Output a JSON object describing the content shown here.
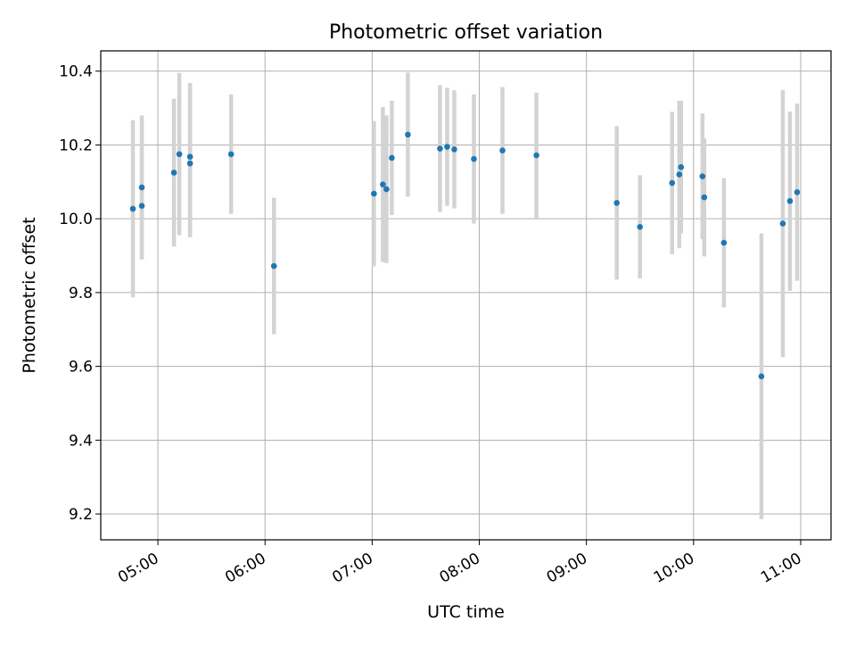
{
  "chart_data": {
    "type": "scatter",
    "title": "Photometric offset variation",
    "xlabel": "UTC time",
    "ylabel": "Photometric offset",
    "x_ticks": [
      "05:00",
      "06:00",
      "07:00",
      "08:00",
      "09:00",
      "10:00",
      "11:00"
    ],
    "y_ticks": [
      "9.2",
      "9.4",
      "9.6",
      "9.8",
      "10.0",
      "10.2",
      "10.4"
    ],
    "xlim": [
      "04:28",
      "11:17"
    ],
    "ylim": [
      9.13,
      10.455
    ],
    "grid": true,
    "colors": {
      "point": "#1f77b4",
      "errorbar": "#d3d3d3",
      "grid": "#b0b0b0"
    },
    "series": [
      {
        "points": [
          {
            "x": "04:46",
            "y": 10.027,
            "yerr": 0.24
          },
          {
            "x": "04:51",
            "y": 10.085,
            "yerr": 0.195
          },
          {
            "x": "04:51",
            "y": 10.035,
            "yerr": 0.145
          },
          {
            "x": "05:09",
            "y": 10.125,
            "yerr": 0.2
          },
          {
            "x": "05:12",
            "y": 10.175,
            "yerr": 0.22
          },
          {
            "x": "05:18",
            "y": 10.168,
            "yerr": 0.2
          },
          {
            "x": "05:18",
            "y": 10.15,
            "yerr": 0.2
          },
          {
            "x": "05:41",
            "y": 10.175,
            "yerr": 0.162
          },
          {
            "x": "06:05",
            "y": 9.872,
            "yerr": 0.185
          },
          {
            "x": "07:01",
            "y": 10.068,
            "yerr": 0.197
          },
          {
            "x": "07:06",
            "y": 10.093,
            "yerr": 0.21
          },
          {
            "x": "07:08",
            "y": 10.08,
            "yerr": 0.2
          },
          {
            "x": "07:11",
            "y": 10.165,
            "yerr": 0.155
          },
          {
            "x": "07:20",
            "y": 10.228,
            "yerr": 0.168
          },
          {
            "x": "07:38",
            "y": 10.19,
            "yerr": 0.172
          },
          {
            "x": "07:42",
            "y": 10.195,
            "yerr": 0.16
          },
          {
            "x": "07:46",
            "y": 10.188,
            "yerr": 0.16
          },
          {
            "x": "07:57",
            "y": 10.162,
            "yerr": 0.175
          },
          {
            "x": "08:13",
            "y": 10.185,
            "yerr": 0.172
          },
          {
            "x": "08:32",
            "y": 10.172,
            "yerr": 0.17
          },
          {
            "x": "09:17",
            "y": 10.043,
            "yerr": 0.208
          },
          {
            "x": "09:30",
            "y": 9.978,
            "yerr": 0.14
          },
          {
            "x": "09:48",
            "y": 10.097,
            "yerr": 0.193
          },
          {
            "x": "09:53",
            "y": 10.14,
            "yerr": 0.18
          },
          {
            "x": "09:52",
            "y": 10.12,
            "yerr": 0.2
          },
          {
            "x": "10:05",
            "y": 10.115,
            "yerr": 0.17
          },
          {
            "x": "10:06",
            "y": 10.058,
            "yerr": 0.16
          },
          {
            "x": "10:17",
            "y": 9.935,
            "yerr": 0.175
          },
          {
            "x": "10:38",
            "y": 9.573,
            "yerr": 0.387
          },
          {
            "x": "10:50",
            "y": 9.987,
            "yerr": 0.362
          },
          {
            "x": "10:54",
            "y": 10.048,
            "yerr": 0.243
          },
          {
            "x": "10:58",
            "y": 10.072,
            "yerr": 0.24
          }
        ]
      }
    ]
  }
}
